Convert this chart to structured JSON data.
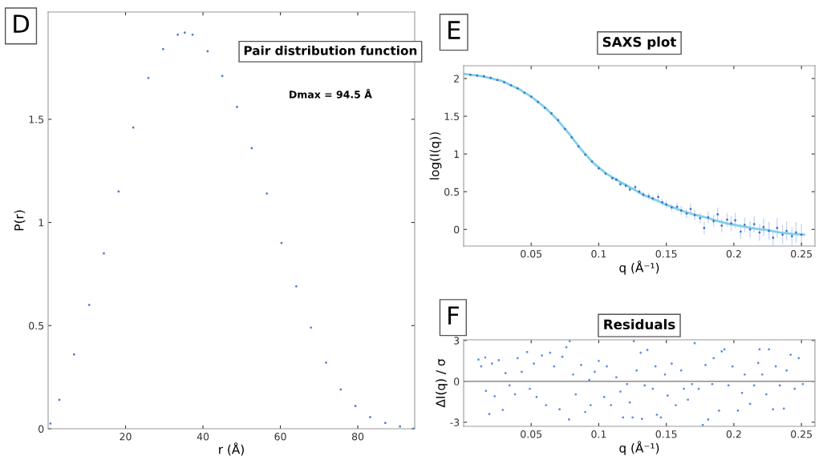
{
  "chart_data": [
    {
      "type": "scatter",
      "title": "Pair distribution function",
      "xlabel": "r (Å)",
      "ylabel": "P(r)",
      "annotations": [
        "D",
        "Dmax = 94.5 Å"
      ],
      "xlim": [
        0,
        94.7
      ],
      "ylim": [
        0,
        2.02
      ],
      "xticks": [
        20,
        40,
        60,
        80
      ],
      "yticks": [
        0,
        0.5,
        1,
        1.5
      ],
      "marker": "circle",
      "grid": false,
      "legend": false,
      "series": [
        {
          "color": "#4a78d8",
          "x": [
            0.6,
            2.9,
            6.7,
            10.6,
            14.4,
            18.2,
            22.0,
            25.9,
            29.7,
            33.5,
            35.3,
            37.3,
            41.2,
            45.0,
            48.8,
            52.6,
            56.5,
            60.3,
            64.1,
            67.9,
            71.8,
            75.6,
            79.4,
            83.2,
            87.1,
            90.9,
            94.5
          ],
          "values": [
            0.025,
            0.14,
            0.36,
            0.6,
            0.85,
            1.15,
            1.46,
            1.7,
            1.84,
            1.91,
            1.92,
            1.91,
            1.83,
            1.71,
            1.56,
            1.36,
            1.14,
            0.9,
            0.69,
            0.49,
            0.32,
            0.19,
            0.11,
            0.056,
            0.028,
            0.011,
            0.0
          ]
        }
      ]
    },
    {
      "type": "scatter",
      "title": "SAXS plot",
      "xlabel": "q (Å⁻¹)",
      "ylabel": "log(I(q))",
      "annotations": [
        "E"
      ],
      "xlim": [
        0.0,
        0.26
      ],
      "ylim": [
        -0.22,
        2.17
      ],
      "xticks": [
        0.05,
        0.1,
        0.15,
        0.2,
        0.25
      ],
      "yticks": [
        0,
        0.5,
        1,
        1.5,
        2
      ],
      "marker": "circle",
      "grid": false,
      "legend": false,
      "series": [
        {
          "color": "#3b6fd6",
          "x": [
            0.005,
            0.01,
            0.015,
            0.02,
            0.025,
            0.03,
            0.035,
            0.04,
            0.045,
            0.05,
            0.055,
            0.06,
            0.065,
            0.07,
            0.075,
            0.08,
            0.085,
            0.09,
            0.095,
            0.1,
            0.105,
            0.11,
            0.113,
            0.116,
            0.12,
            0.123,
            0.127,
            0.13,
            0.133,
            0.137,
            0.14,
            0.144,
            0.147,
            0.15,
            0.154,
            0.158,
            0.161,
            0.165,
            0.168,
            0.171,
            0.175,
            0.178,
            0.181,
            0.185,
            0.188,
            0.191,
            0.195,
            0.198,
            0.201,
            0.205,
            0.208,
            0.212,
            0.215,
            0.219,
            0.222,
            0.226,
            0.229,
            0.232,
            0.236,
            0.239,
            0.243,
            0.246,
            0.25
          ],
          "values": [
            2.05,
            2.04,
            2.03,
            2.01,
            1.98,
            1.95,
            1.91,
            1.87,
            1.81,
            1.76,
            1.69,
            1.61,
            1.54,
            1.45,
            1.33,
            1.22,
            1.1,
            0.99,
            0.9,
            0.81,
            0.74,
            0.68,
            0.66,
            0.6,
            0.58,
            0.53,
            0.56,
            0.5,
            0.46,
            0.44,
            0.41,
            0.43,
            0.36,
            0.33,
            0.29,
            0.3,
            0.25,
            0.21,
            0.27,
            0.19,
            0.15,
            0.02,
            0.16,
            0.11,
            0.2,
            0.05,
            0.13,
            0.08,
            0.12,
            -0.03,
            0.06,
            0.0,
            0.07,
            -0.04,
            0.03,
            -0.02,
            -0.11,
            0.02,
            -0.07,
            -0.02,
            -0.09,
            -0.04,
            -0.07
          ],
          "errors": [
            null,
            null,
            null,
            null,
            null,
            null,
            null,
            null,
            null,
            null,
            null,
            null,
            null,
            null,
            null,
            null,
            null,
            null,
            null,
            0.02,
            0.02,
            0.025,
            0.025,
            0.03,
            0.03,
            0.03,
            0.035,
            0.035,
            0.04,
            0.04,
            0.04,
            0.045,
            0.05,
            0.05,
            0.05,
            0.06,
            0.06,
            0.06,
            0.07,
            0.07,
            0.07,
            0.08,
            0.08,
            0.08,
            0.09,
            0.09,
            0.09,
            0.1,
            0.1,
            0.1,
            0.1,
            0.11,
            0.11,
            0.11,
            0.12,
            0.12,
            0.1,
            0.13,
            0.13,
            0.13,
            0.12,
            0.14,
            0.14
          ]
        },
        {
          "type": "line",
          "marker": "none",
          "color": "#7fd0e6",
          "x": [
            0.0007,
            0.0136,
            0.028,
            0.041,
            0.05,
            0.06,
            0.069,
            0.078,
            0.087,
            0.096,
            0.1055,
            0.115,
            0.124,
            0.133,
            0.142,
            0.151,
            0.161,
            0.17,
            0.179,
            0.188,
            0.197,
            0.207,
            0.216,
            0.225,
            0.234,
            0.243,
            0.252
          ],
          "values": [
            2.06,
            2.03,
            1.97,
            1.86,
            1.76,
            1.62,
            1.46,
            1.27,
            1.06,
            0.88,
            0.74,
            0.64,
            0.55,
            0.46,
            0.39,
            0.32,
            0.25,
            0.2,
            0.16,
            0.11,
            0.07,
            0.04,
            0.01,
            -0.01,
            -0.04,
            -0.06,
            -0.07
          ]
        }
      ]
    },
    {
      "type": "scatter",
      "title": "Residuals",
      "xlabel": "q (Å⁻¹)",
      "ylabel": "ΔI(q) / σ",
      "annotations": [
        "F"
      ],
      "xlim": [
        0.0,
        0.26
      ],
      "ylim": [
        -3.3,
        3.05
      ],
      "xticks": [
        0.05,
        0.1,
        0.15,
        0.2,
        0.25
      ],
      "yticks": [
        -3,
        0,
        3
      ],
      "marker": "circle",
      "grid": false,
      "legend": false,
      "ref_lines": [
        {
          "axis": "y",
          "value": 0,
          "label": null,
          "color": "#9a9a9a"
        }
      ],
      "series": [
        {
          "color": "#5b8ee0",
          "x": [
            0.011,
            0.013,
            0.016,
            0.0165,
            0.019,
            0.021,
            0.023,
            0.026,
            0.029,
            0.031,
            0.034,
            0.038,
            0.04,
            0.043,
            0.047,
            0.049,
            0.052,
            0.054,
            0.058,
            0.061,
            0.064,
            0.067,
            0.071,
            0.073,
            0.076,
            0.078,
            0.0785,
            0.081,
            0.083,
            0.087,
            0.09,
            0.093,
            0.094,
            0.097,
            0.1,
            0.104,
            0.106,
            0.109,
            0.113,
            0.116,
            0.118,
            0.121,
            0.123,
            0.125,
            0.126,
            0.128,
            0.131,
            0.132,
            0.134,
            0.136,
            0.14,
            0.142,
            0.143,
            0.146,
            0.149,
            0.151,
            0.154,
            0.157,
            0.161,
            0.163,
            0.166,
            0.169,
            0.171,
            0.174,
            0.177,
            0.179,
            0.181,
            0.184,
            0.185,
            0.189,
            0.191,
            0.193,
            0.196,
            0.199,
            0.203,
            0.206,
            0.208,
            0.212,
            0.215,
            0.218,
            0.219,
            0.221,
            0.224,
            0.226,
            0.229,
            0.231,
            0.234,
            0.237,
            0.239,
            0.242,
            0.245,
            0.248,
            0.251
          ],
          "values": [
            1.6,
            1.1,
            1.75,
            -0.7,
            -2.4,
            1.3,
            -1.1,
            1.55,
            -2.1,
            0.6,
            -0.3,
            -0.95,
            1.7,
            0.7,
            2.15,
            -0.55,
            1.3,
            -1.15,
            1.9,
            -1.75,
            2.1,
            1.1,
            -2.05,
            1.8,
            2.5,
            -2.8,
            2.95,
            0.5,
            -0.95,
            1.2,
            -2.25,
            0.1,
            -1.75,
            0.7,
            1.5,
            -1.15,
            1.1,
            -1.75,
            0.3,
            -0.75,
            -2.65,
            -0.2,
            -1.55,
            -2.65,
            2.95,
            0.8,
            2.1,
            -2.75,
            -0.3,
            2.3,
            -0.55,
            1.1,
            -2.45,
            -2.65,
            0.5,
            -1.05,
            1.3,
            -1.75,
            0.8,
            -0.55,
            -1.35,
            -0.2,
            2.8,
            -0.55,
            -3.2,
            1.2,
            -2.8,
            -0.2,
            1.7,
            -2.15,
            2.2,
            2.35,
            -0.3,
            1.1,
            -2.15,
            -0.85,
            0.5,
            -1.65,
            -0.3,
            1.35,
            2.35,
            0.5,
            -0.95,
            2.35,
            -2.05,
            1.1,
            -0.3,
            -2.0,
            0.8,
            1.95,
            -0.55,
            1.7,
            -0.2
          ]
        }
      ]
    }
  ]
}
